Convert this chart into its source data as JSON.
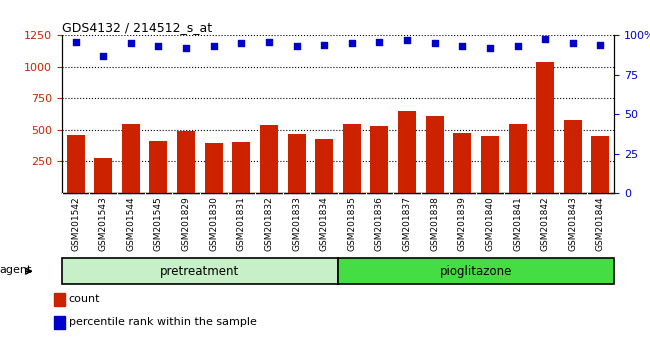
{
  "title": "GDS4132 / 214512_s_at",
  "samples": [
    "GSM201542",
    "GSM201543",
    "GSM201544",
    "GSM201545",
    "GSM201829",
    "GSM201830",
    "GSM201831",
    "GSM201832",
    "GSM201833",
    "GSM201834",
    "GSM201835",
    "GSM201836",
    "GSM201837",
    "GSM201838",
    "GSM201839",
    "GSM201840",
    "GSM201841",
    "GSM201842",
    "GSM201843",
    "GSM201844"
  ],
  "counts": [
    460,
    275,
    545,
    415,
    495,
    395,
    405,
    540,
    465,
    425,
    545,
    530,
    650,
    610,
    475,
    450,
    550,
    1040,
    575,
    455
  ],
  "percentile_ranks": [
    96,
    87,
    95,
    93,
    92,
    93,
    95,
    96,
    93,
    94,
    95,
    96,
    97,
    95,
    93,
    92,
    93,
    98,
    95,
    94
  ],
  "pre_count": 10,
  "pio_count": 10,
  "bar_color": "#CC2200",
  "scatter_color": "#0000CC",
  "ylim_left": [
    0,
    1250
  ],
  "ylim_right": [
    0,
    100
  ],
  "yticks_left": [
    250,
    500,
    750,
    1000,
    1250
  ],
  "yticks_right": [
    0,
    25,
    50,
    75,
    100
  ],
  "pre_color": "#C8F0C8",
  "pio_color": "#44DD44",
  "xtick_bg": "#C8C8C8",
  "agent_label": "agent",
  "pre_label": "pretreatment",
  "pio_label": "pioglitazone",
  "legend_count_label": "count",
  "legend_pct_label": "percentile rank within the sample"
}
